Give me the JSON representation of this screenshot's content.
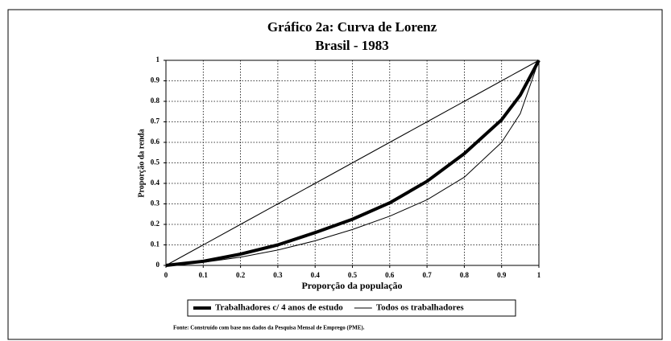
{
  "chart_data": {
    "type": "line",
    "title": "Gráfico 2a: Curva de Lorenz",
    "subtitle": "Brasil - 1983",
    "x_label": "Proporção da população",
    "y_label": "Proporção da renda",
    "footnote": "Fonte: Construído com base nos dados da Pesquisa Mensal de Emprego (PME).",
    "x": [
      0,
      0.1,
      0.2,
      0.3,
      0.4,
      0.5,
      0.6,
      0.7,
      0.8,
      0.9,
      0.95,
      1
    ],
    "series": [
      {
        "color": "#000000",
        "linewidth": 1,
        "values": [
          0,
          0.1,
          0.2,
          0.3,
          0.4,
          0.5,
          0.6,
          0.7,
          0.8,
          0.9,
          0.95,
          1
        ]
      },
      {
        "name": "Trabalhadores c/ 4 anos de estudo",
        "color": "#000000",
        "linewidth": 4,
        "values": [
          0,
          0.02,
          0.055,
          0.1,
          0.16,
          0.225,
          0.305,
          0.41,
          0.545,
          0.71,
          0.83,
          1
        ]
      },
      {
        "name": "Todos os trabalhadores",
        "color": "#000000",
        "linewidth": 1,
        "values": [
          0,
          0.015,
          0.04,
          0.075,
          0.12,
          0.175,
          0.24,
          0.32,
          0.43,
          0.6,
          0.74,
          1
        ]
      }
    ],
    "xlim": [
      0,
      1
    ],
    "xticks": [
      0,
      0.1,
      0.2,
      0.3,
      0.4,
      0.5,
      0.6,
      0.7,
      0.8,
      0.9,
      1
    ],
    "ylim": [
      0,
      1
    ],
    "yticks": [
      0,
      0.1,
      0.2,
      0.3,
      0.4,
      0.5,
      0.6,
      0.7,
      0.8,
      0.9,
      1
    ],
    "grid": true
  }
}
